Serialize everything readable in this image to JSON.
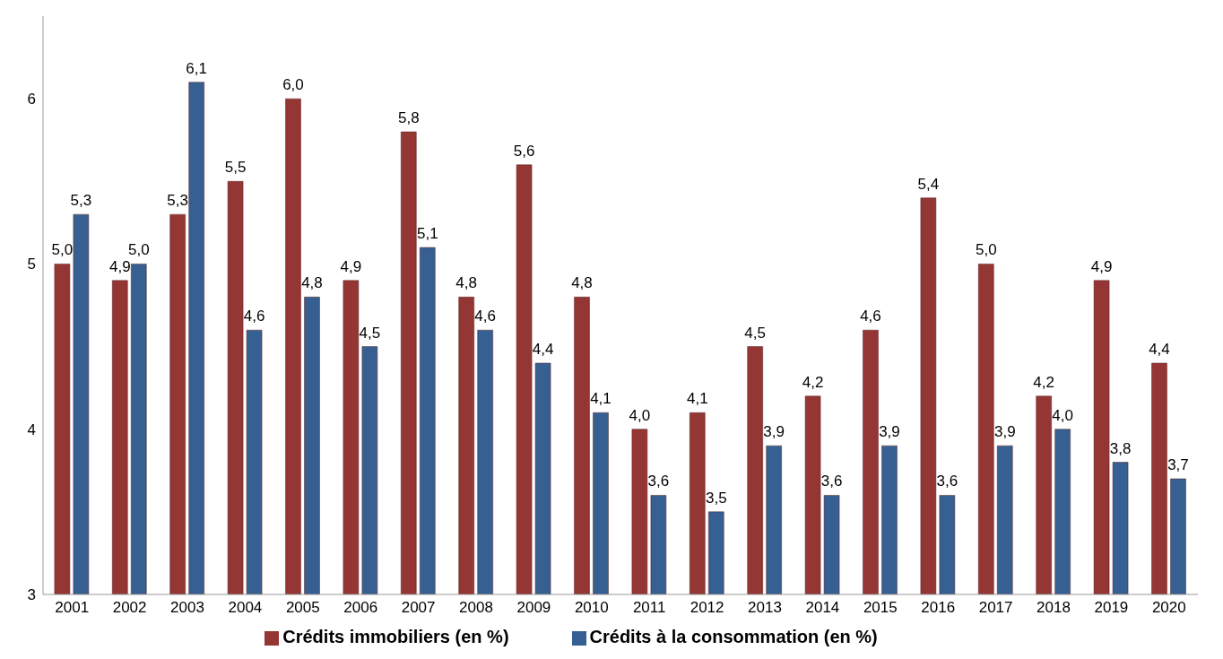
{
  "chart_data": {
    "type": "bar",
    "categories": [
      "2001",
      "2002",
      "2003",
      "2004",
      "2005",
      "2006",
      "2007",
      "2008",
      "2009",
      "2010",
      "2011",
      "2012",
      "2013",
      "2014",
      "2015",
      "2016",
      "2017",
      "2018",
      "2019",
      "2020"
    ],
    "series": [
      {
        "name": "Crédits immobiliers (en %)",
        "color": "#943634",
        "values": [
          5.0,
          4.9,
          5.3,
          5.5,
          6.0,
          4.9,
          5.8,
          4.8,
          5.6,
          4.8,
          4.0,
          4.1,
          4.5,
          4.2,
          4.6,
          5.4,
          5.0,
          4.2,
          4.9,
          4.4
        ],
        "value_labels": [
          "5,0",
          "4,9",
          "5,3",
          "5,5",
          "6,0",
          "4,9",
          "5,8",
          "4,8",
          "5,6",
          "4,8",
          "4,0",
          "4,1",
          "4,5",
          "4,2",
          "4,6",
          "5,4",
          "5,0",
          "4,2",
          "4,9",
          "4,4"
        ]
      },
      {
        "name": "Crédits à la consommation (en %)",
        "color": "#366092",
        "values": [
          5.3,
          5.0,
          6.1,
          4.6,
          4.8,
          4.5,
          5.1,
          4.6,
          4.4,
          4.1,
          3.6,
          3.5,
          3.9,
          3.6,
          3.9,
          3.6,
          3.9,
          4.0,
          3.8,
          3.7
        ],
        "value_labels": [
          "5,3",
          "5,0",
          "6,1",
          "4,6",
          "4,8",
          "4,5",
          "5,1",
          "4,6",
          "4,4",
          "4,1",
          "3,6",
          "3,5",
          "3,9",
          "3,6",
          "3,9",
          "3,6",
          "3,9",
          "4,0",
          "3,8",
          "3,7"
        ]
      }
    ],
    "ylim": [
      3,
      6.5
    ],
    "yticks": [
      3,
      4,
      5,
      6
    ],
    "grid": false,
    "legend": "bottom"
  }
}
